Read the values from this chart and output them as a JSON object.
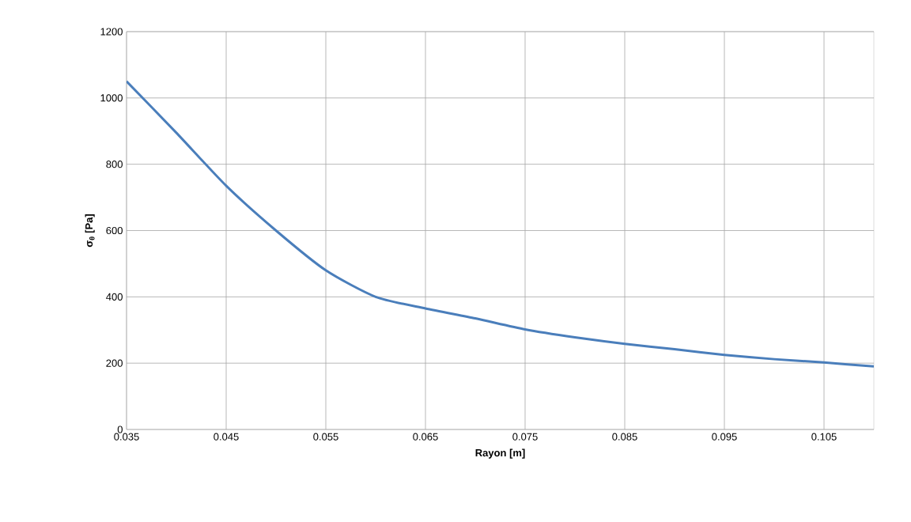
{
  "chart_data": {
    "type": "line",
    "xlabel": "**Rayon [m]**",
    "ylabel": "**σ$_{θ}$ [Pa]**",
    "x": [
      0.035,
      0.04,
      0.045,
      0.05,
      0.055,
      0.06,
      0.065,
      0.07,
      0.075,
      0.08,
      0.085,
      0.09,
      0.095,
      0.1,
      0.105,
      0.11
    ],
    "series": [
      {
        "color": "#4a7ebb",
        "values": [
          1050,
          895,
          735,
          600,
          480,
          400,
          365,
          335,
          302,
          278,
          258,
          242,
          225,
          212,
          202,
          190
        ]
      }
    ],
    "xlim": [
      0.035,
      0.11
    ],
    "ylim": [
      0,
      1200
    ],
    "xticks": [
      0.035,
      0.045,
      0.055,
      0.065,
      0.075,
      0.085,
      0.095,
      0.105
    ],
    "yticks": [
      0,
      200,
      400,
      600,
      800,
      1000,
      1200
    ],
    "grid": true,
    "marker": "none",
    "line_style": "solid"
  }
}
